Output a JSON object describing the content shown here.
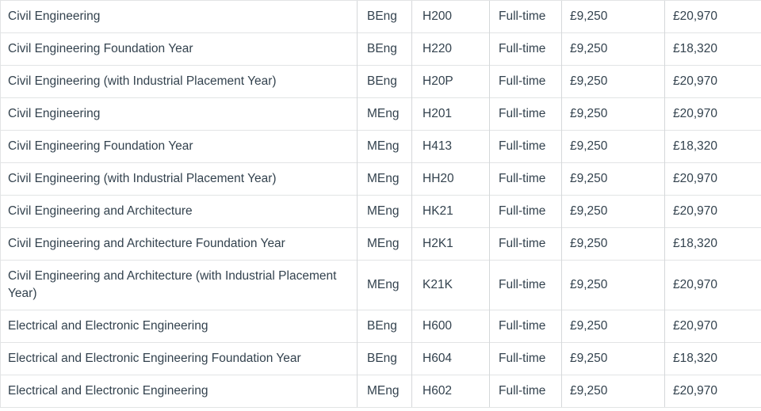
{
  "colors": {
    "text": "#33424e",
    "border_horizontal": "#e2e4e5",
    "border_vertical": "#d5d8da",
    "background": "#ffffff"
  },
  "table": {
    "description": "Course fees table",
    "columns": [
      "course",
      "degree",
      "code",
      "mode",
      "home_fee",
      "international_fee"
    ],
    "rows": [
      {
        "course": "Civil Engineering",
        "degree": "BEng",
        "code": "H200",
        "mode": "Full-time",
        "home_fee": "£9,250",
        "international_fee": "£20,970"
      },
      {
        "course": "Civil Engineering Foundation Year",
        "degree": "BEng",
        "code": "H220",
        "mode": "Full-time",
        "home_fee": "£9,250",
        "international_fee": "£18,320"
      },
      {
        "course": "Civil Engineering (with Industrial Placement Year)",
        "degree": "BEng",
        "code": "H20P",
        "mode": "Full-time",
        "home_fee": "£9,250",
        "international_fee": "£20,970"
      },
      {
        "course": "Civil Engineering",
        "degree": "MEng",
        "code": "H201",
        "mode": "Full-time",
        "home_fee": "£9,250",
        "international_fee": "£20,970"
      },
      {
        "course": "Civil Engineering Foundation Year",
        "degree": "MEng",
        "code": "H413",
        "mode": "Full-time",
        "home_fee": "£9,250",
        "international_fee": "£18,320"
      },
      {
        "course": "Civil Engineering (with Industrial Placement Year)",
        "degree": "MEng",
        "code": "HH20",
        "mode": "Full-time",
        "home_fee": "£9,250",
        "international_fee": "£20,970"
      },
      {
        "course": "Civil Engineering and Architecture",
        "degree": "MEng",
        "code": "HK21",
        "mode": "Full-time",
        "home_fee": "£9,250",
        "international_fee": "£20,970"
      },
      {
        "course": "Civil Engineering and Architecture Foundation Year",
        "degree": "MEng",
        "code": "H2K1",
        "mode": "Full-time",
        "home_fee": "£9,250",
        "international_fee": "£18,320"
      },
      {
        "course": "Civil Engineering and Architecture (with Industrial Placement Year)",
        "degree": "MEng",
        "code": "K21K",
        "mode": "Full-time",
        "home_fee": "£9,250",
        "international_fee": "£20,970"
      },
      {
        "course": "Electrical and Electronic Engineering",
        "degree": "BEng",
        "code": "H600",
        "mode": "Full-time",
        "home_fee": "£9,250",
        "international_fee": "£20,970"
      },
      {
        "course": "Electrical and Electronic Engineering Foundation Year",
        "degree": "BEng",
        "code": "H604",
        "mode": "Full-time",
        "home_fee": "£9,250",
        "international_fee": "£18,320"
      },
      {
        "course": "Electrical and Electronic Engineering",
        "degree": "MEng",
        "code": "H602",
        "mode": "Full-time",
        "home_fee": "£9,250",
        "international_fee": "£20,970"
      }
    ]
  }
}
